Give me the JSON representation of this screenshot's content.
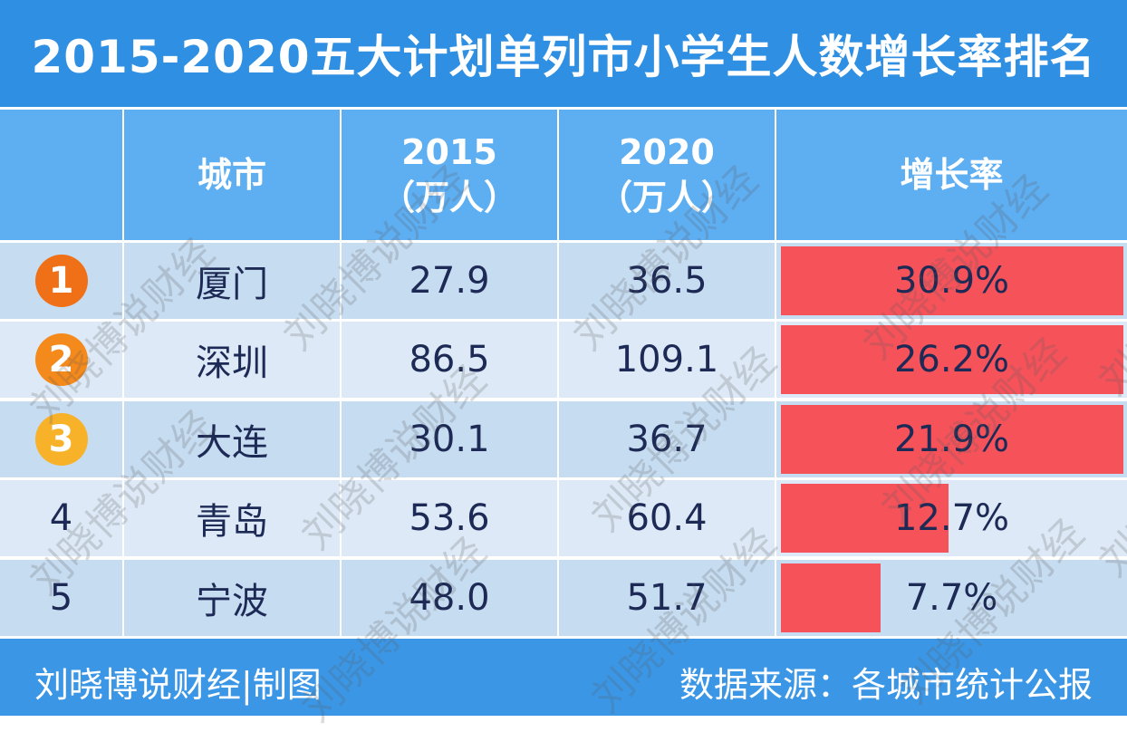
{
  "title": "2015-2020五大计划单列市小学生人数增长率排名",
  "header": {
    "city": "城市",
    "y2015": "2015",
    "y2015_unit": "（万人）",
    "y2020": "2020",
    "y2020_unit": "（万人）",
    "rate": "增长率"
  },
  "rows": [
    {
      "rank": "1",
      "city": "厦门",
      "v2015": "27.9",
      "v2020": "36.5",
      "rate": "30.9%",
      "bar_fill": 1.0,
      "badge_color": "#f07018"
    },
    {
      "rank": "2",
      "city": "深圳",
      "v2015": "86.5",
      "v2020": "109.1",
      "rate": "26.2%",
      "bar_fill": 1.0,
      "badge_color": "#f58a1c"
    },
    {
      "rank": "3",
      "city": "大连",
      "v2015": "30.1",
      "v2020": "36.7",
      "rate": "21.9%",
      "bar_fill": 1.0,
      "badge_color": "#f8b22a"
    },
    {
      "rank": "4",
      "city": "青岛",
      "v2015": "53.6",
      "v2020": "60.4",
      "rate": "12.7%",
      "bar_fill": 0.49,
      "badge_color": ""
    },
    {
      "rank": "5",
      "city": "宁波",
      "v2015": "48.0",
      "v2020": "51.7",
      "rate": "7.7%",
      "bar_fill": 0.29,
      "badge_color": ""
    }
  ],
  "footer": {
    "left": "刘晓博说财经|制图",
    "right": "数据来源：各城市统计公报"
  },
  "watermark": "刘晓博说财经",
  "colors": {
    "title_bg": "#2f8fe2",
    "header_bg": "#5eaef2",
    "row_dark": "#c6dcf1",
    "row_light": "#dde9f6",
    "bar": "#f5525a"
  }
}
